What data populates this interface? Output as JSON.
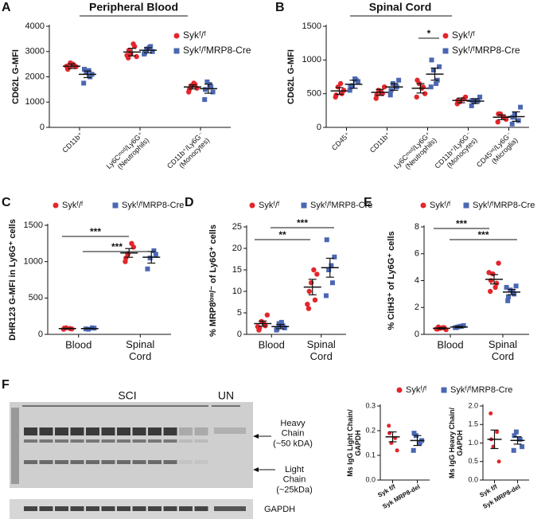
{
  "chart_data": [
    {
      "type": "dot",
      "label": "A",
      "title": "Peripheral Blood",
      "y_label": "CD62L G-MFI",
      "categories": [
        "CD11b⁺",
        "Ly6Cᵐᵒᵈ/Ly6G⁺\n(Neutrophils)",
        "CD11b⁺/Ly6G⁻\n(Monocytes)"
      ],
      "ylim": [
        0,
        4000
      ],
      "yticks": [
        0,
        1000,
        2000,
        3000,
        4000
      ],
      "series": [
        {
          "name": "Sykᶠ/ᶠ",
          "color": "#e3262c",
          "values": [
            2420,
            2980,
            1600
          ],
          "errors": [
            90,
            150,
            80
          ],
          "points": [
            [
              2300,
              2450,
              2550,
              2400,
              2350,
              2500,
              2420
            ],
            [
              2750,
              3200,
              2900,
              2800,
              3050,
              3300,
              2850
            ],
            [
              1400,
              1700,
              1650,
              1550,
              1500,
              1750
            ]
          ]
        },
        {
          "name": "Sykᶠ/ᶠMRP8-Cre",
          "color": "#4b67b3",
          "values": [
            2100,
            3050,
            1530
          ],
          "errors": [
            130,
            100,
            180
          ],
          "points": [
            [
              1750,
              2000,
              2200,
              2100,
              2300,
              2250
            ],
            [
              2900,
              3200,
              3100,
              3000,
              2950,
              3150
            ],
            [
              1100,
              1600,
              1800,
              1400,
              1500,
              1700
            ]
          ]
        }
      ]
    },
    {
      "type": "dot",
      "label": "B",
      "title": "Spinal Cord",
      "y_label": "CD62L G-MFI",
      "categories": [
        "CD45⁺",
        "CD11b⁺",
        "Ly6Cᵐᵒᵈ/Ly6G⁺\n(Neutrophils)",
        "CD11b⁺/Ly6G⁻\n(Monocytes)",
        "CD45ⁱⁿᵗ/Ly6G⁻\n(Microglia)"
      ],
      "ylim": [
        0,
        1500
      ],
      "yticks": [
        0,
        500,
        1000,
        1500
      ],
      "significance": [
        "*"
      ],
      "series": [
        {
          "name": "Sykᶠ/ᶠ",
          "color": "#e3262c",
          "values": [
            540,
            520,
            580,
            400,
            150
          ],
          "errors": [
            50,
            45,
            70,
            35,
            35
          ],
          "points": [
            [
              450,
              500,
              600,
              550,
              480,
              650
            ],
            [
              430,
              500,
              550,
              600,
              480,
              530
            ],
            [
              450,
              600,
              650,
              500,
              700,
              580
            ],
            [
              350,
              420,
              380,
              450,
              400
            ],
            [
              80,
              150,
              200,
              120,
              200
            ]
          ]
        },
        {
          "name": "Sykᶠ/ᶠMRP8-Cre",
          "color": "#4b67b3",
          "values": [
            640,
            600,
            790,
            390,
            160
          ],
          "errors": [
            60,
            50,
            90,
            35,
            70
          ],
          "points": [
            [
              550,
              700,
              620,
              680,
              600,
              720
            ],
            [
              480,
              600,
              650,
              700,
              550,
              620
            ],
            [
              600,
              700,
              850,
              900,
              1000,
              650
            ],
            [
              320,
              400,
              380,
              450,
              400
            ],
            [
              50,
              100,
              200,
              300,
              150
            ]
          ]
        }
      ]
    },
    {
      "type": "dot",
      "label": "C",
      "y_label": "DHR123 G-MFI in Ly6G⁺ cells",
      "categories": [
        "Blood",
        "Spinal\nCord"
      ],
      "ylim": [
        0,
        1500
      ],
      "yticks": [
        0,
        500,
        1000,
        1500
      ],
      "significance": [
        "***",
        "***"
      ],
      "series": [
        {
          "name": "Sykᶠ/ᶠ",
          "color": "#e3262c",
          "values": [
            80,
            1120
          ],
          "errors": [
            5,
            60
          ],
          "points": [
            [
              70,
              80,
              90,
              75,
              85
            ],
            [
              1000,
              1250,
              1100,
              1200,
              1050
            ]
          ]
        },
        {
          "name": "Sykᶠ/ᶠMRP8-Cre",
          "color": "#4b67b3",
          "values": [
            80,
            1060
          ],
          "errors": [
            5,
            80
          ],
          "points": [
            [
              75,
              90,
              70,
              85
            ],
            [
              900,
              1150,
              1050,
              1100
            ]
          ]
        }
      ]
    },
    {
      "type": "dot",
      "label": "D",
      "y_label": "% MRP8ˡᵒʷ/⁻ of Ly6G⁺ cells",
      "categories": [
        "Blood",
        "Spinal\nCord"
      ],
      "ylim": [
        0,
        25
      ],
      "yticks": [
        0,
        5,
        10,
        15,
        20,
        25
      ],
      "significance": [
        "***",
        "**"
      ],
      "series": [
        {
          "name": "Sykᶠ/ᶠ",
          "color": "#e3262c",
          "values": [
            2.5,
            11
          ],
          "errors": [
            0.6,
            1.8
          ],
          "points": [
            [
              1,
              2,
              3,
              4.5,
              1.5,
              2.5,
              1.8
            ],
            [
              6,
              8,
              12,
              14,
              10,
              15,
              7
            ]
          ]
        },
        {
          "name": "Sykᶠ/ᶠMRP8-Cre",
          "color": "#4b67b3",
          "values": [
            1.8,
            15.5
          ],
          "errors": [
            0.5,
            2.2
          ],
          "points": [
            [
              1,
              2,
              2.5,
              1.5,
              1.2,
              2.8
            ],
            [
              9,
              12,
              15,
              18,
              22,
              16
            ]
          ]
        }
      ]
    },
    {
      "type": "dot",
      "label": "E",
      "y_label": "% CitH3⁺ of Ly6G⁺ cells",
      "categories": [
        "Blood",
        "Spinal\nCord"
      ],
      "ylim": [
        0,
        8
      ],
      "yticks": [
        0,
        2,
        4,
        6,
        8
      ],
      "significance": [
        "***",
        "***"
      ],
      "series": [
        {
          "name": "Sykᶠ/ᶠ",
          "color": "#e3262c",
          "values": [
            0.45,
            4.1
          ],
          "errors": [
            0.05,
            0.35
          ],
          "points": [
            [
              0.4,
              0.5,
              0.45,
              0.35,
              0.55,
              0.5,
              0.4
            ],
            [
              3.2,
              3.8,
              4.5,
              5.3,
              4,
              3.5,
              4.6
            ]
          ]
        },
        {
          "name": "Sykᶠ/ᶠMRP8-Cre",
          "color": "#4b67b3",
          "values": [
            0.55,
            3.15
          ],
          "errors": [
            0.05,
            0.2
          ],
          "points": [
            [
              0.5,
              0.6,
              0.55,
              0.65,
              0.5,
              0.6
            ],
            [
              2.5,
              3,
              3.3,
              3.6,
              2.8,
              3.2,
              3.5
            ]
          ]
        }
      ]
    },
    {
      "type": "dot",
      "y_label": "Ms IgG Light Chain/\nGAPDH",
      "categories": [
        "Syk f/f",
        "Syk MRP8-del"
      ],
      "ylim": [
        0,
        0.3
      ],
      "yticks": [
        {
          "value": 0,
          "label": "0.0"
        },
        0.1,
        0.2,
        0.3
      ],
      "series": [
        {
          "name": "Sykᶠ/ᶠ",
          "color": "#e3262c",
          "values": [
            0.175,
            null
          ],
          "errors": [
            0.02,
            null
          ],
          "points": [
            [
              0.22,
              0.17,
              0.15,
              0.12,
              0.19
            ],
            []
          ]
        },
        {
          "name": "Sykᶠ/ᶠMRP8-Cre",
          "color": "#4b67b3",
          "values": [
            null,
            0.16
          ],
          "errors": [
            null,
            0.02
          ],
          "points": [
            [],
            [
              0.12,
              0.15,
              0.18,
              0.16,
              0.19
            ]
          ]
        }
      ]
    },
    {
      "type": "dot",
      "y_label": "Ms IgG Heavy Chain/\nGAPDH",
      "categories": [
        "Syk f/f",
        "Syk MRP8-del"
      ],
      "ylim": [
        0,
        2
      ],
      "yticks": [
        {
          "value": 0,
          "label": "0.0"
        },
        0.5,
        {
          "value": 1,
          "label": "1.0"
        },
        1.5,
        {
          "value": 2,
          "label": "2.0"
        }
      ],
      "series": [
        {
          "color": "#e3262c",
          "values": [
            1.1,
            null
          ],
          "errors": [
            0.25,
            null
          ],
          "points": [
            [
              1.8,
              1.3,
              0.9,
              0.5,
              1.1
            ],
            []
          ]
        },
        {
          "color": "#4b67b3",
          "values": [
            null,
            1.07
          ],
          "errors": [
            null,
            0.1
          ],
          "points": [
            [],
            [
              0.8,
              1.1,
              1.3,
              0.9,
              1.2
            ]
          ]
        }
      ]
    }
  ],
  "blot": {
    "panel": "F",
    "sci": "SCI",
    "un": "UN",
    "heavy": "Heavy\nChain\n(~50 kDA)",
    "light": "Light\nChain\n(~25kDa)",
    "gapdh": "GAPDH"
  }
}
